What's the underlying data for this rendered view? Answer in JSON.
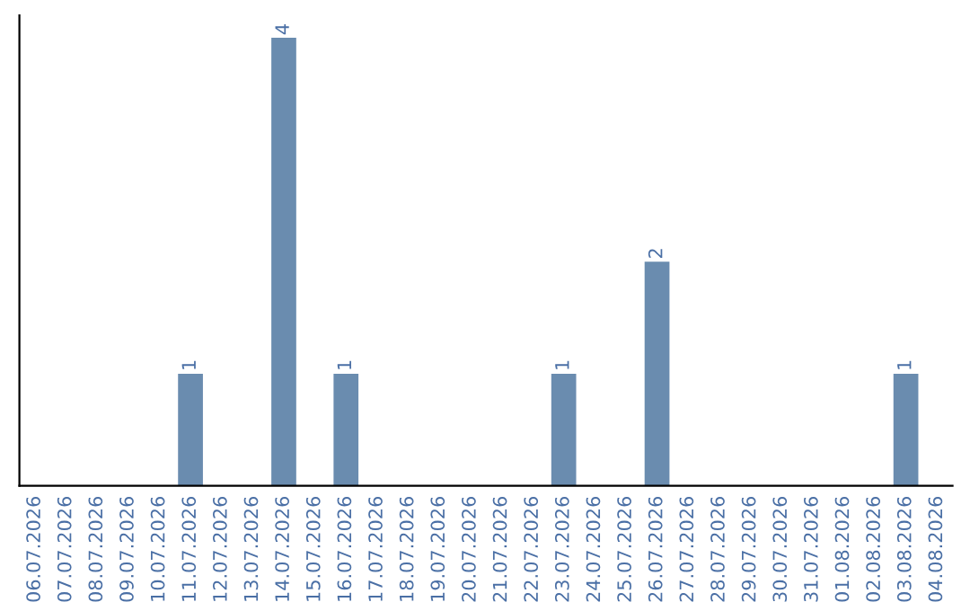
{
  "chart_data": {
    "type": "bar",
    "categories": [
      "06.07.2026",
      "07.07.2026",
      "08.07.2026",
      "09.07.2026",
      "10.07.2026",
      "11.07.2026",
      "12.07.2026",
      "13.07.2026",
      "14.07.2026",
      "15.07.2026",
      "16.07.2026",
      "17.07.2026",
      "18.07.2026",
      "19.07.2026",
      "20.07.2026",
      "21.07.2026",
      "22.07.2026",
      "23.07.2026",
      "24.07.2026",
      "25.07.2026",
      "26.07.2026",
      "27.07.2026",
      "28.07.2026",
      "29.07.2026",
      "30.07.2026",
      "31.07.2026",
      "01.08.2026",
      "02.08.2026",
      "03.08.2026",
      "04.08.2026"
    ],
    "values": [
      0,
      0,
      0,
      0,
      0,
      1,
      0,
      0,
      4,
      0,
      1,
      0,
      0,
      0,
      0,
      0,
      0,
      1,
      0,
      0,
      2,
      0,
      0,
      0,
      0,
      0,
      0,
      0,
      1,
      0
    ],
    "value_labels": [
      null,
      null,
      null,
      null,
      null,
      "1",
      null,
      null,
      "4",
      null,
      "1",
      null,
      null,
      null,
      null,
      null,
      null,
      "1",
      null,
      null,
      "2",
      null,
      null,
      null,
      null,
      null,
      null,
      null,
      "1",
      null
    ],
    "color": "#6a8caf",
    "tick_labels": "x",
    "grid": false
  }
}
